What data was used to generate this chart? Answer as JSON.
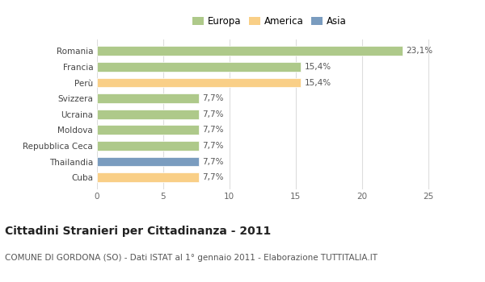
{
  "categories": [
    "Romania",
    "Francia",
    "Perù",
    "Svizzera",
    "Ucraina",
    "Moldova",
    "Repubblica Ceca",
    "Thailandia",
    "Cuba"
  ],
  "values": [
    23.1,
    15.4,
    15.4,
    7.7,
    7.7,
    7.7,
    7.7,
    7.7,
    7.7
  ],
  "labels": [
    "23,1%",
    "15,4%",
    "15,4%",
    "7,7%",
    "7,7%",
    "7,7%",
    "7,7%",
    "7,7%",
    "7,7%"
  ],
  "colors": [
    "#aec98a",
    "#aec98a",
    "#f9cf87",
    "#aec98a",
    "#aec98a",
    "#aec98a",
    "#aec98a",
    "#7a9cbf",
    "#f9cf87"
  ],
  "legend_labels": [
    "Europa",
    "America",
    "Asia"
  ],
  "legend_colors": [
    "#aec98a",
    "#f9cf87",
    "#7a9cbf"
  ],
  "xlim": [
    0,
    26
  ],
  "xticks": [
    0,
    5,
    10,
    15,
    20,
    25
  ],
  "title": "Cittadini Stranieri per Cittadinanza - 2011",
  "subtitle": "COMUNE DI GORDONA (SO) - Dati ISTAT al 1° gennaio 2011 - Elaborazione TUTTITALIA.IT",
  "background_color": "#ffffff",
  "bar_edge_color": "#ffffff",
  "grid_color": "#dddddd",
  "title_fontsize": 10,
  "subtitle_fontsize": 7.5,
  "label_fontsize": 7.5,
  "tick_fontsize": 7.5,
  "legend_fontsize": 8.5
}
